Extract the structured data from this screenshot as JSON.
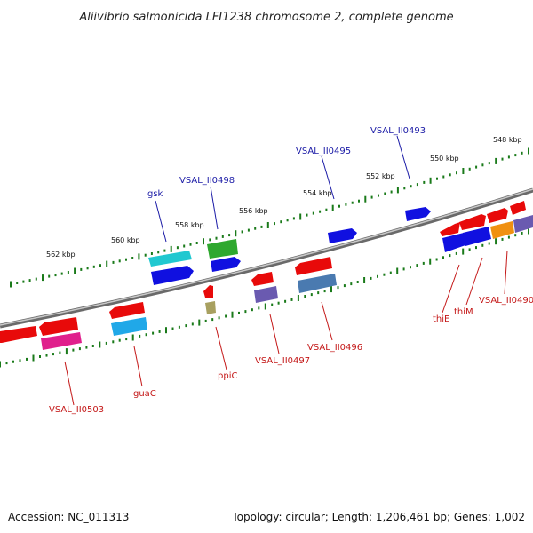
{
  "title": "Aliivibrio salmonicida LFI1238 chromosome 2, complete genome",
  "footer": {
    "accession": "Accession: NC_011313",
    "topology": "Topology: circular; Length: 1,206,461 bp; Genes: 1,002"
  },
  "kbp_ticks": [
    "562 kbp",
    "560 kbp",
    "558 kbp",
    "556 kbp",
    "554 kbp",
    "552 kbp",
    "550 kbp",
    "548 kbp"
  ],
  "gene_labels": {
    "gsk": "gsk",
    "vsal_ii0498": "VSAL_II0498",
    "vsal_ii0495": "VSAL_II0495",
    "vsal_ii0493": "VSAL_II0493",
    "thie": "thiE",
    "thim": "thiM",
    "vsal_ii0490": "VSAL_II0490",
    "vsal_ii0496": "VSAL_II0496",
    "vsal_ii0497": "VSAL_II0497",
    "ppic": "ppiC",
    "guac": "guaC",
    "vsal_ii0503": "VSAL_II0503"
  },
  "colors": {
    "backbone": "#808080",
    "tick": "#1a7a1a",
    "red": "#e80a0a",
    "blue": "#1010e0",
    "cyan": "#20c8d0",
    "green": "#2ea82e",
    "magenta": "#e0208c",
    "sky": "#20a8e8",
    "purple": "#6a5ab0",
    "steel": "#4a7ab0",
    "olive": "#a8a060",
    "orange": "#f09010",
    "label_blue": "#1a1aa6",
    "label_red": "#c41818"
  }
}
